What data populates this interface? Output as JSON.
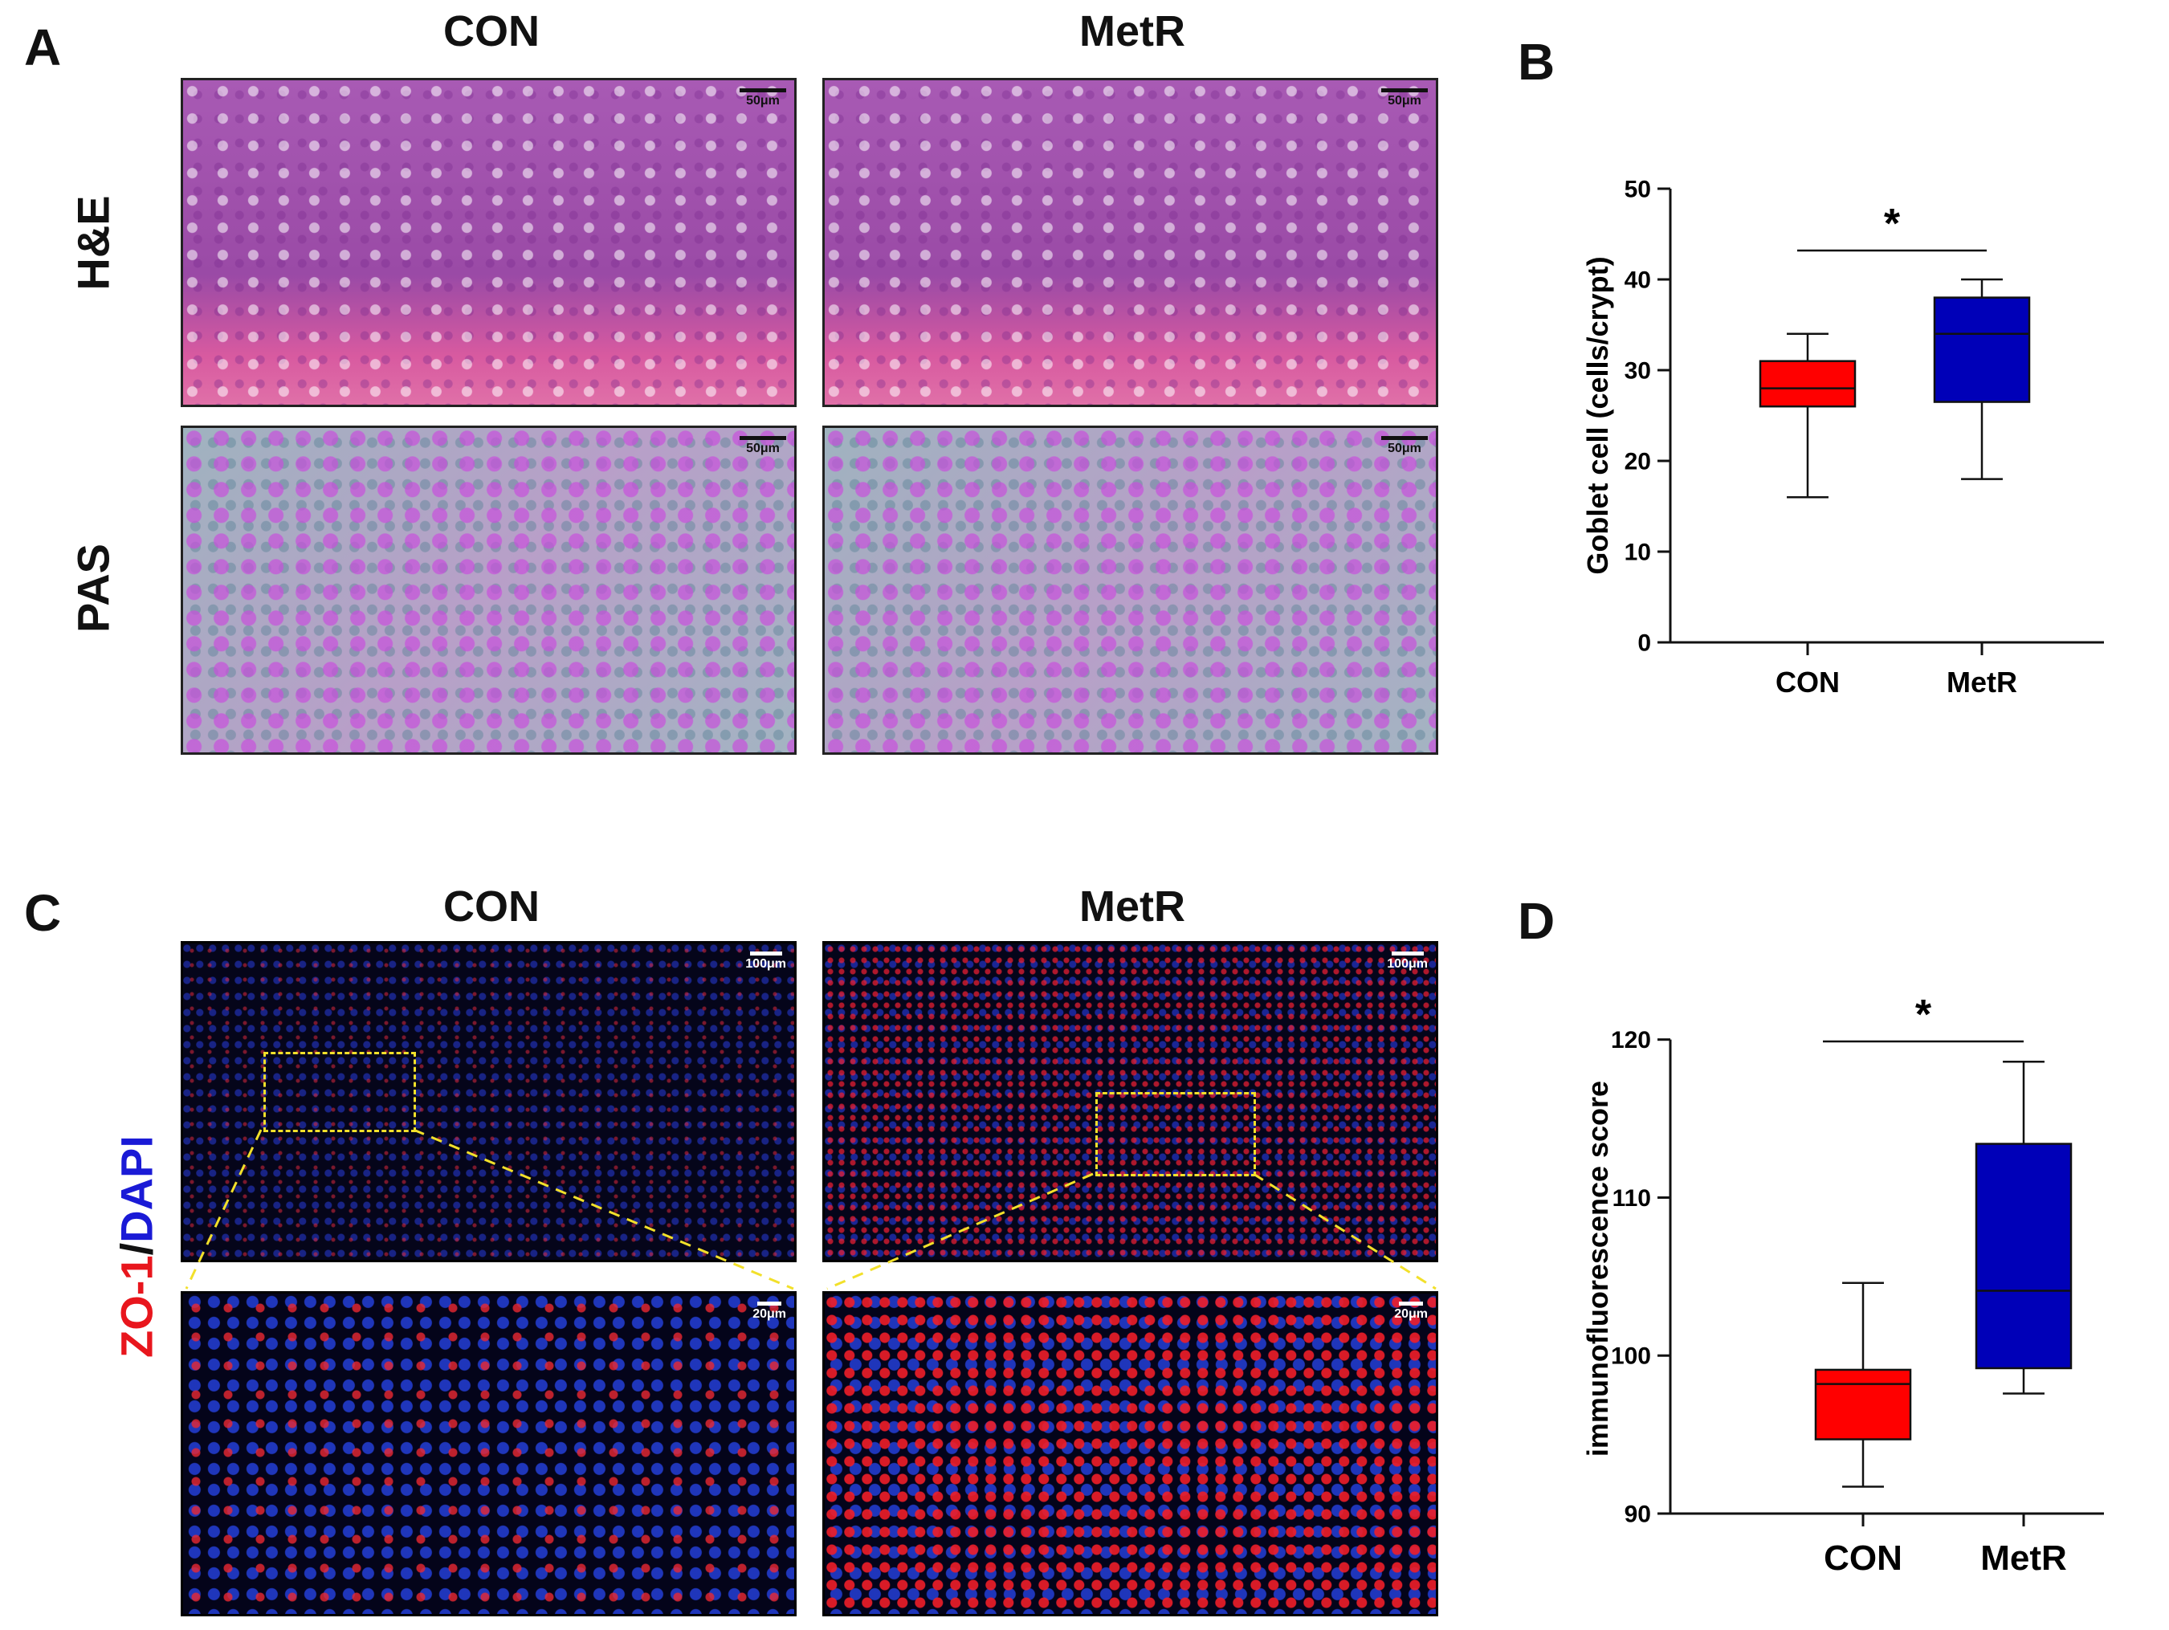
{
  "panels": {
    "A": {
      "letter": "A",
      "columns": [
        "CON",
        "MetR"
      ],
      "rows": [
        "H&E",
        "PAS"
      ],
      "scale": "50μm"
    },
    "B": {
      "letter": "B"
    },
    "C": {
      "letter": "C",
      "columns": [
        "CON",
        "MetR"
      ],
      "stain_red": "ZO-1",
      "stain_sep": "/",
      "stain_blue": "DAPI",
      "scale_overview": "100μm",
      "scale_zoom": "20μm"
    },
    "D": {
      "letter": "D"
    }
  },
  "chart_data": [
    {
      "type": "box",
      "panel": "B",
      "ylabel": "Goblet cell (cells/crypt)",
      "ylim": [
        0,
        50
      ],
      "yticks": [
        0,
        10,
        20,
        30,
        40,
        50
      ],
      "categories": [
        "CON",
        "MetR"
      ],
      "colors": [
        "#ff0000",
        "#0000b8"
      ],
      "series": [
        {
          "category": "CON",
          "min": 16,
          "q1": 26,
          "median": 28,
          "q3": 31,
          "max": 34
        },
        {
          "category": "MetR",
          "min": 18,
          "q1": 26.5,
          "median": 34,
          "q3": 38,
          "max": 40
        }
      ],
      "significance": "*"
    },
    {
      "type": "box",
      "panel": "D",
      "ylabel": "immunofluorescence score",
      "ylim": [
        90,
        121
      ],
      "yticks": [
        90,
        100,
        110,
        120
      ],
      "categories": [
        "CON",
        "MetR"
      ],
      "colors": [
        "#ff0000",
        "#0000b8"
      ],
      "series": [
        {
          "category": "CON",
          "min": 91.7,
          "q1": 94.7,
          "median": 98.2,
          "q3": 99.1,
          "max": 104.6
        },
        {
          "category": "MetR",
          "min": 97.6,
          "q1": 99.2,
          "median": 104.1,
          "q3": 113.4,
          "max": 118.6
        }
      ],
      "significance": "*"
    }
  ]
}
